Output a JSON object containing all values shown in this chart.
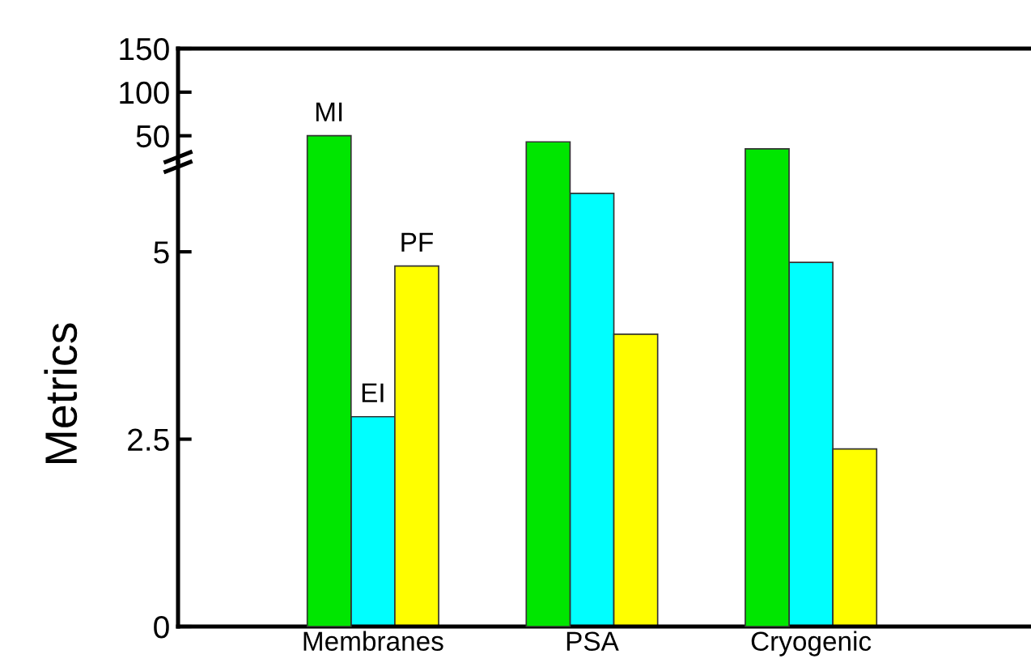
{
  "chart_data": [
    {
      "type": "bar",
      "categories": [
        null,
        null,
        null
      ],
      "ylim": [
        20,
        150
      ],
      "yticks": [
        50,
        100,
        150
      ],
      "tick_labels": "y",
      "legend": false,
      "grid": false,
      "series": [
        {
          "name": "MI",
          "color": "#00e600",
          "values": [
            50,
            43,
            35
          ]
        }
      ]
    },
    {
      "type": "bar",
      "categories": [
        "Membranes",
        "PSA",
        "Cryogenic"
      ],
      "ylim": [
        0,
        6.2
      ],
      "yticks": [
        0,
        2.5,
        5
      ],
      "ylabel": "Metrics",
      "legend": false,
      "grid": false,
      "series": [
        {
          "name": "EI",
          "color": "#00ffff",
          "values": [
            2.8,
            5.78,
            4.86
          ]
        },
        {
          "name": "PF",
          "color": "#ffff00",
          "values": [
            4.81,
            3.9,
            2.37
          ]
        }
      ]
    }
  ]
}
